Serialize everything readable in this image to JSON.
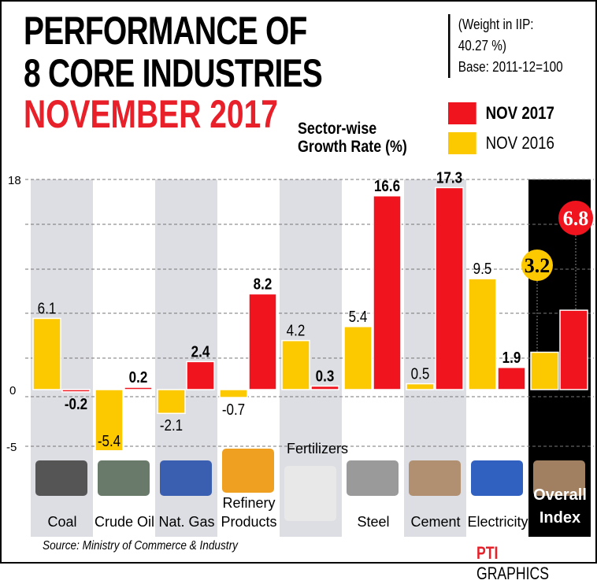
{
  "title": {
    "line1": "PERFORMANCE OF",
    "line2": "8 CORE INDUSTRIES",
    "line3": "NOVEMBER 2017"
  },
  "subtitle": {
    "line1": "Sector-wise",
    "line2": "Growth Rate (%)"
  },
  "note": {
    "line1": "(Weight in IIP:",
    "line2": "40.27 %)",
    "line3": "Base: 2011-12=100"
  },
  "source": "Source: Ministry of Commerce & Industry",
  "credit": {
    "pti": "PTI",
    "graphics": "GRAPHICS"
  },
  "colors": {
    "nov2017": "#f0141e",
    "nov2016": "#fcc800",
    "band": "#dcdee3",
    "overall": "#000000"
  },
  "chart_data": {
    "type": "bar",
    "title": "Sector-wise Growth Rate (%)",
    "categories": [
      "Coal",
      "Crude Oil",
      "Nat. Gas",
      "Refinery Products",
      "Fertilizers",
      "Steel",
      "Cement",
      "Electricity",
      "Overall Index"
    ],
    "series": [
      {
        "name": "NOV 2016",
        "values": [
          6.1,
          -5.4,
          -2.1,
          -0.7,
          4.2,
          5.4,
          0.5,
          9.5,
          3.2
        ]
      },
      {
        "name": "NOV 2017",
        "values": [
          -0.2,
          0.2,
          2.4,
          8.2,
          0.3,
          16.6,
          17.3,
          1.9,
          6.8
        ]
      }
    ],
    "yticks": [
      "18",
      "0",
      "-5"
    ],
    "ylim": [
      -5,
      18
    ],
    "legend": [
      "NOV 2017",
      "NOV 2016"
    ],
    "legend_position": "top-right"
  }
}
